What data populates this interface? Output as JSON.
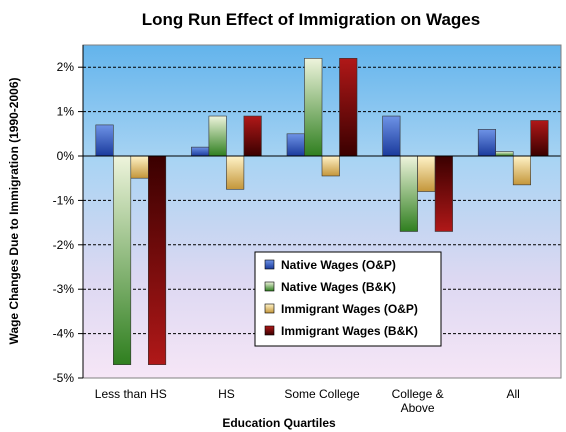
{
  "chart_data": {
    "type": "bar",
    "title": "Long Run Effect of Immigration on Wages",
    "xlabel": "Education Quartiles",
    "ylabel": "Wage Changes Due to Immigration (1990-2006)",
    "ylim": [
      -5,
      2.5
    ],
    "yticks": [
      2,
      1,
      0,
      -1,
      -2,
      -3,
      -4,
      -5
    ],
    "ytick_labels": [
      "2%",
      "1%",
      "0%",
      "-1%",
      "-2%",
      "-3%",
      "-4%",
      "-5%"
    ],
    "categories": [
      "Less than HS",
      "HS",
      "Some College",
      "College & Above",
      "All"
    ],
    "category_lines": [
      [
        "Less than HS"
      ],
      [
        "HS"
      ],
      [
        "Some College"
      ],
      [
        "College &",
        "Above"
      ],
      [
        "All"
      ]
    ],
    "grid": true,
    "legend_position": "lower-right",
    "series": [
      {
        "name": "Native Wages (O&P)",
        "color": "#2b4fbf",
        "values": [
          0.7,
          0.2,
          0.5,
          0.9,
          0.6
        ]
      },
      {
        "name": "Native Wages (B&K)",
        "color": "#3f8f2a",
        "values": [
          -4.7,
          0.9,
          2.2,
          -1.7,
          0.1
        ]
      },
      {
        "name": "Immigrant Wages (O&P)",
        "color": "#d4a94a",
        "values": [
          -0.5,
          -0.75,
          -0.45,
          -0.8,
          -0.65
        ]
      },
      {
        "name": "Immigrant Wages (B&K)",
        "color": "#7a0a0a",
        "values": [
          -4.7,
          0.9,
          2.2,
          -1.7,
          0.8
        ]
      }
    ]
  }
}
